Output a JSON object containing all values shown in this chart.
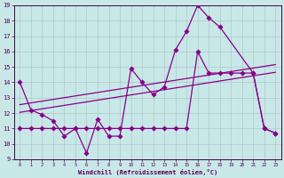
{
  "xlabel": "Windchill (Refroidissement éolien,°C)",
  "bg_color": "#c8e8e8",
  "grid_color": "#b0c8c8",
  "line_color": "#880088",
  "xlim": [
    -0.5,
    23.5
  ],
  "ylim": [
    9,
    19
  ],
  "xticks": [
    0,
    1,
    2,
    3,
    4,
    5,
    6,
    7,
    8,
    9,
    10,
    11,
    12,
    13,
    14,
    15,
    16,
    17,
    18,
    19,
    20,
    21,
    22,
    23
  ],
  "yticks": [
    9,
    10,
    11,
    12,
    13,
    14,
    15,
    16,
    17,
    18,
    19
  ],
  "line1_x": [
    0,
    1,
    2,
    3,
    4,
    5,
    6,
    7,
    8,
    9,
    10,
    11,
    12,
    13,
    14,
    15,
    16,
    17,
    18,
    21,
    22,
    23
  ],
  "line1_y": [
    14.0,
    12.2,
    11.9,
    11.5,
    10.5,
    11.0,
    9.4,
    11.6,
    10.5,
    10.5,
    14.9,
    14.0,
    13.2,
    13.7,
    16.1,
    17.3,
    19.0,
    18.2,
    17.6,
    14.6,
    11.0,
    10.7
  ],
  "line2_x": [
    0,
    23
  ],
  "line2_y": [
    12.05,
    14.65
  ],
  "line3_x": [
    0,
    23
  ],
  "line3_y": [
    12.55,
    15.15
  ],
  "line4_x": [
    0,
    1,
    2,
    3,
    4,
    5,
    6,
    7,
    8,
    9,
    10,
    11,
    12,
    13,
    14,
    15,
    16,
    17,
    18,
    19,
    20,
    21,
    22,
    23
  ],
  "line4_y": [
    11.0,
    11.0,
    11.0,
    11.0,
    11.0,
    11.0,
    11.0,
    11.0,
    11.0,
    11.0,
    11.0,
    11.0,
    11.0,
    11.0,
    11.0,
    11.0,
    16.0,
    14.6,
    14.6,
    14.6,
    14.6,
    14.6,
    11.0,
    10.7
  ]
}
